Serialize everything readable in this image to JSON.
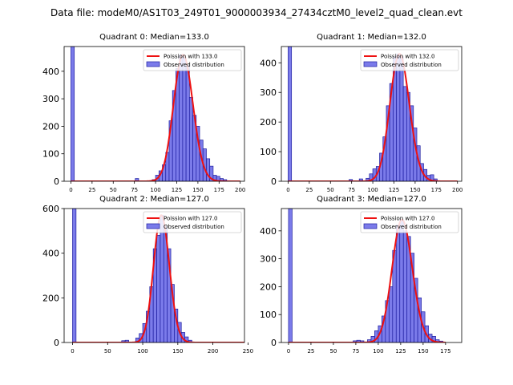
{
  "title": "Data file: modeM0/AS1T03_249T01_9000003934_27434cztM0_level2_quad_clean.evt",
  "colors": {
    "bar_fill": "#7b7bea",
    "bar_edge": "#1e1ea0",
    "curve": "#ee1111"
  },
  "legend_observed": "Observed distribution",
  "chart_data": [
    {
      "type": "bar",
      "title": "Quadrant 0: Median=133.0",
      "median": 133,
      "curve_label": "Poission with 133.0",
      "xlim": [
        -8,
        205
      ],
      "ylim": [
        0,
        490
      ],
      "xticks": [
        0,
        25,
        50,
        75,
        100,
        125,
        150,
        175,
        200
      ],
      "yticks": [
        0,
        100,
        200,
        300,
        400
      ],
      "bin_width": 4,
      "bar_starts": [
        0,
        76,
        96,
        100,
        104,
        108,
        112,
        116,
        120,
        124,
        128,
        132,
        136,
        140,
        144,
        148,
        152,
        156,
        160,
        164,
        168,
        172,
        176,
        180,
        184
      ],
      "bar_values": [
        490,
        10,
        6,
        22,
        38,
        60,
        105,
        220,
        330,
        410,
        460,
        450,
        420,
        305,
        240,
        200,
        150,
        118,
        82,
        55,
        22,
        18,
        10,
        6,
        2
      ]
    },
    {
      "type": "bar",
      "title": "Quadrant 1: Median=132.0",
      "median": 132,
      "curve_label": "Poission with 132.0",
      "xlim": [
        -8,
        205
      ],
      "ylim": [
        0,
        455
      ],
      "xticks": [
        0,
        25,
        50,
        75,
        100,
        125,
        150,
        175,
        200
      ],
      "yticks": [
        0,
        100,
        200,
        300,
        400
      ],
      "bin_width": 4,
      "bar_starts": [
        0,
        72,
        84,
        92,
        96,
        100,
        104,
        108,
        112,
        116,
        120,
        124,
        128,
        132,
        136,
        140,
        144,
        148,
        152,
        156,
        160,
        164,
        168,
        172
      ],
      "bar_values": [
        455,
        6,
        8,
        10,
        25,
        42,
        50,
        95,
        150,
        255,
        330,
        420,
        430,
        420,
        320,
        300,
        255,
        180,
        120,
        60,
        40,
        20,
        22,
        8
      ]
    },
    {
      "type": "bar",
      "title": "Quadrant 2: Median=127.0",
      "median": 127,
      "curve_label": "Poission with 127.0",
      "xlim": [
        -12,
        245
      ],
      "ylim": [
        0,
        600
      ],
      "xticks": [
        0,
        50,
        100,
        150,
        200,
        250
      ],
      "yticks": [
        0,
        200,
        400,
        600
      ],
      "bin_width": 5,
      "bar_starts": [
        0,
        70,
        75,
        90,
        95,
        100,
        105,
        110,
        115,
        120,
        125,
        130,
        135,
        140,
        145,
        150,
        155,
        160,
        165
      ],
      "bar_values": [
        600,
        8,
        10,
        20,
        40,
        85,
        140,
        250,
        420,
        480,
        570,
        520,
        420,
        260,
        150,
        90,
        45,
        25,
        10
      ]
    },
    {
      "type": "bar",
      "title": "Quadrant 3: Median=127.0",
      "median": 127,
      "curve_label": "Poission with 127.0",
      "xlim": [
        -8,
        193
      ],
      "ylim": [
        0,
        480
      ],
      "xticks": [
        0,
        25,
        50,
        75,
        100,
        125,
        150,
        175
      ],
      "yticks": [
        0,
        100,
        200,
        300,
        400
      ],
      "bin_width": 4,
      "bar_starts": [
        0,
        72,
        76,
        80,
        88,
        92,
        96,
        100,
        104,
        108,
        112,
        116,
        120,
        124,
        128,
        132,
        136,
        140,
        144,
        148,
        152,
        156,
        160,
        164,
        168
      ],
      "bar_values": [
        480,
        6,
        8,
        6,
        10,
        22,
        42,
        60,
        95,
        150,
        200,
        330,
        420,
        440,
        400,
        380,
        320,
        230,
        160,
        110,
        60,
        30,
        22,
        10,
        5
      ]
    }
  ]
}
